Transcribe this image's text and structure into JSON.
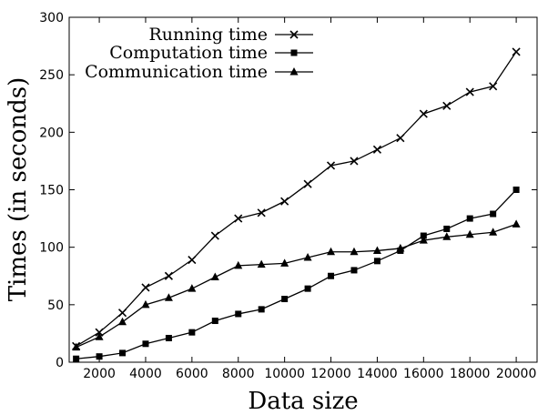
{
  "chart_data": {
    "type": "line",
    "xlabel": "Data size",
    "ylabel": "Times (in seconds)",
    "xlim": [
      700,
      20900
    ],
    "ylim": [
      0,
      300
    ],
    "xticks": [
      2000,
      4000,
      6000,
      8000,
      10000,
      12000,
      14000,
      16000,
      18000,
      20000
    ],
    "yticks": [
      0,
      50,
      100,
      150,
      200,
      250,
      300
    ],
    "grid": false,
    "legend": "top-center",
    "x": [
      1000,
      2000,
      3000,
      4000,
      5000,
      6000,
      7000,
      8000,
      9000,
      10000,
      11000,
      12000,
      13000,
      14000,
      15000,
      16000,
      17000,
      18000,
      19000,
      20000
    ],
    "series": [
      {
        "name": "Running time",
        "marker": "x",
        "values": [
          14,
          26,
          43,
          65,
          75,
          89,
          110,
          125,
          130,
          140,
          155,
          171,
          175,
          185,
          195,
          216,
          223,
          235,
          240,
          270
        ]
      },
      {
        "name": "Computation time",
        "marker": "square",
        "values": [
          3,
          5,
          8,
          16,
          21,
          26,
          36,
          42,
          46,
          55,
          64,
          75,
          80,
          88,
          97,
          110,
          116,
          125,
          129,
          150
        ]
      },
      {
        "name": "Communication time",
        "marker": "triangle",
        "values": [
          13,
          22,
          35,
          50,
          56,
          64,
          74,
          84,
          85,
          86,
          91,
          96,
          96,
          97,
          99,
          106,
          109,
          111,
          113,
          120
        ]
      }
    ]
  }
}
